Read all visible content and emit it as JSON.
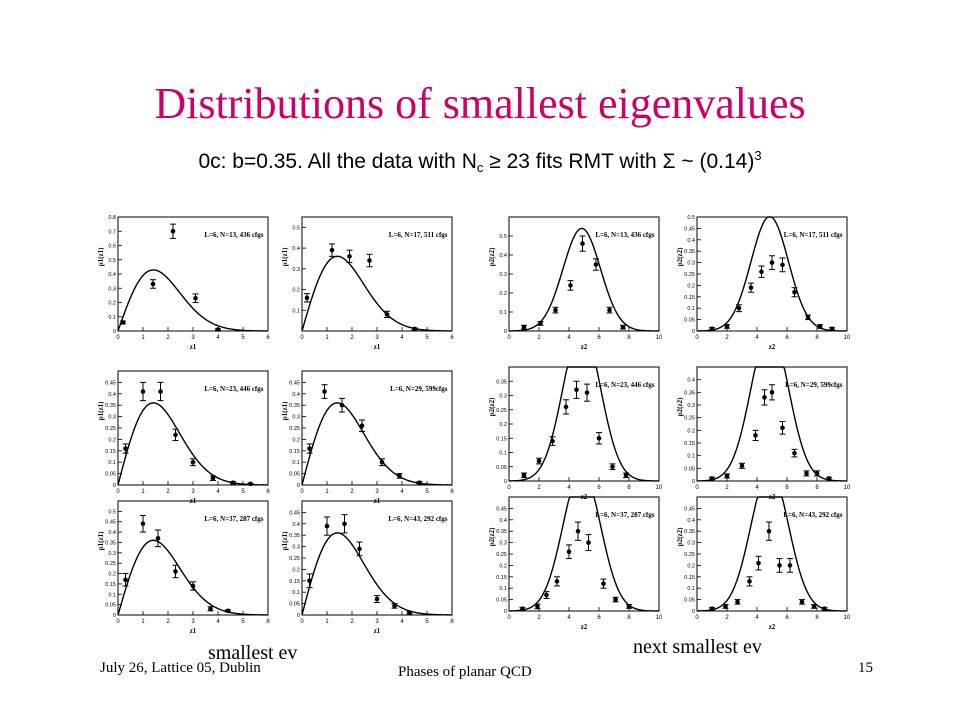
{
  "slide": {
    "title": "Distributions of smallest eigenvalues",
    "subtitle": {
      "prefix": "0c: b=0.35. All the data with N",
      "sub": "c",
      "mid": " ≥ 23 fits RMT with Σ ~ (0.14)",
      "sup": "3"
    },
    "caption_left": "smallest ev",
    "caption_right": "next smallest ev",
    "footer_left": "July 26, Lattice 05, Dublin",
    "footer_center": "Phases of planar QCD",
    "page_number": "15"
  },
  "chart_data": [
    {
      "type": "scatter",
      "title": "L=6, N=13, 436 cfgs",
      "xlabel": "z1",
      "ylabel": "p1(z1)",
      "xlim": [
        0,
        6
      ],
      "ylim": [
        0,
        0.8
      ],
      "xticks": [
        0,
        1,
        2,
        3,
        4,
        5,
        6
      ],
      "yticks": [
        0,
        0.1,
        0.2,
        0.3,
        0.4,
        0.5,
        0.6,
        0.7,
        0.8
      ],
      "points": [
        {
          "x": 0.2,
          "y": 0.06,
          "e": 0.01
        },
        {
          "x": 1.4,
          "y": 0.33,
          "e": 0.03
        },
        {
          "x": 2.2,
          "y": 0.7,
          "e": 0.05
        },
        {
          "x": 3.1,
          "y": 0.23,
          "e": 0.03
        },
        {
          "x": 4.0,
          "y": 0.01,
          "e": 0.005
        }
      ],
      "curve": "n1",
      "curve_scale": 1.0
    },
    {
      "type": "scatter",
      "title": "L=6, N=17, 511 cfgs",
      "xlabel": "z1",
      "ylabel": "p1(z1)",
      "xlim": [
        0,
        6
      ],
      "ylim": [
        0,
        0.55
      ],
      "xticks": [
        0,
        1,
        2,
        3,
        4,
        5,
        6
      ],
      "yticks": [
        0.1,
        0.2,
        0.3,
        0.4,
        0.5
      ],
      "points": [
        {
          "x": 0.2,
          "y": 0.16,
          "e": 0.02
        },
        {
          "x": 1.2,
          "y": 0.39,
          "e": 0.03
        },
        {
          "x": 1.9,
          "y": 0.36,
          "e": 0.03
        },
        {
          "x": 2.7,
          "y": 0.34,
          "e": 0.03
        },
        {
          "x": 3.4,
          "y": 0.08,
          "e": 0.015
        },
        {
          "x": 4.5,
          "y": 0.01,
          "e": 0.005
        }
      ],
      "curve": "n1",
      "curve_scale": 0.84
    },
    {
      "type": "scatter",
      "title": "L=6, N=23, 446 cfgs",
      "xlabel": "z1",
      "ylabel": "p1(z1)",
      "xlim": [
        0,
        6
      ],
      "ylim": [
        0,
        0.5
      ],
      "xticks": [
        0,
        1,
        2,
        3,
        4,
        5,
        6
      ],
      "yticks": [
        0,
        0.05,
        0.1,
        0.15,
        0.2,
        0.25,
        0.3,
        0.35,
        0.4,
        0.45
      ],
      "points": [
        {
          "x": 0.3,
          "y": 0.16,
          "e": 0.02
        },
        {
          "x": 1.0,
          "y": 0.41,
          "e": 0.04
        },
        {
          "x": 1.7,
          "y": 0.41,
          "e": 0.04
        },
        {
          "x": 2.3,
          "y": 0.22,
          "e": 0.025
        },
        {
          "x": 3.0,
          "y": 0.1,
          "e": 0.015
        },
        {
          "x": 3.8,
          "y": 0.03,
          "e": 0.01
        },
        {
          "x": 4.6,
          "y": 0.01,
          "e": 0.005
        },
        {
          "x": 5.3,
          "y": 0.005,
          "e": 0.003
        }
      ],
      "curve": "n1",
      "curve_scale": 0.84
    },
    {
      "type": "scatter",
      "title": "L=6, N=29, 599cfgs",
      "xlabel": "z1",
      "ylabel": "p1(z1)",
      "xlim": [
        0,
        6
      ],
      "ylim": [
        0,
        0.5
      ],
      "xticks": [
        0,
        1,
        2,
        3,
        4,
        5,
        6
      ],
      "yticks": [
        0,
        0.05,
        0.1,
        0.15,
        0.2,
        0.25,
        0.3,
        0.35,
        0.4,
        0.45
      ],
      "points": [
        {
          "x": 0.3,
          "y": 0.16,
          "e": 0.02
        },
        {
          "x": 0.9,
          "y": 0.41,
          "e": 0.03
        },
        {
          "x": 1.6,
          "y": 0.35,
          "e": 0.03
        },
        {
          "x": 2.4,
          "y": 0.26,
          "e": 0.025
        },
        {
          "x": 3.2,
          "y": 0.1,
          "e": 0.015
        },
        {
          "x": 3.9,
          "y": 0.04,
          "e": 0.01
        },
        {
          "x": 4.7,
          "y": 0.01,
          "e": 0.005
        }
      ],
      "curve": "n1",
      "curve_scale": 0.84
    },
    {
      "type": "scatter",
      "title": "L=6, N=37, 287 cfgs",
      "xlabel": "z1",
      "ylabel": "p1(z1)",
      "xlim": [
        0,
        6
      ],
      "ylim": [
        0,
        0.55
      ],
      "xticks": [
        0,
        1,
        2,
        3,
        4,
        5,
        6
      ],
      "yticks": [
        0,
        0.05,
        0.1,
        0.15,
        0.2,
        0.25,
        0.3,
        0.35,
        0.4,
        0.45,
        0.5
      ],
      "points": [
        {
          "x": 0.3,
          "y": 0.17,
          "e": 0.03
        },
        {
          "x": 1.0,
          "y": 0.44,
          "e": 0.04
        },
        {
          "x": 1.6,
          "y": 0.37,
          "e": 0.04
        },
        {
          "x": 2.3,
          "y": 0.21,
          "e": 0.03
        },
        {
          "x": 3.0,
          "y": 0.14,
          "e": 0.02
        },
        {
          "x": 3.7,
          "y": 0.03,
          "e": 0.01
        },
        {
          "x": 4.4,
          "y": 0.02,
          "e": 0.005
        }
      ],
      "curve": "n1",
      "curve_scale": 0.84
    },
    {
      "type": "scatter",
      "title": "L=6, N=43, 292 cfgs",
      "xlabel": "z1",
      "ylabel": "p1(z1)",
      "xlim": [
        0,
        6
      ],
      "ylim": [
        0,
        0.5
      ],
      "xticks": [
        0,
        1,
        2,
        3,
        4,
        5,
        6
      ],
      "yticks": [
        0,
        0.05,
        0.1,
        0.15,
        0.2,
        0.25,
        0.3,
        0.35,
        0.4,
        0.45
      ],
      "points": [
        {
          "x": 0.3,
          "y": 0.15,
          "e": 0.03
        },
        {
          "x": 1.0,
          "y": 0.39,
          "e": 0.04
        },
        {
          "x": 1.7,
          "y": 0.4,
          "e": 0.04
        },
        {
          "x": 2.3,
          "y": 0.29,
          "e": 0.03
        },
        {
          "x": 3.0,
          "y": 0.07,
          "e": 0.015
        },
        {
          "x": 3.7,
          "y": 0.04,
          "e": 0.01
        },
        {
          "x": 4.3,
          "y": 0.01,
          "e": 0.005
        }
      ],
      "curve": "n1",
      "curve_scale": 0.84
    },
    {
      "type": "scatter",
      "title": "L=6, N=13, 436 cfgs",
      "xlabel": "z2",
      "ylabel": "p2(z2)",
      "xlim": [
        0,
        10
      ],
      "ylim": [
        0,
        0.6
      ],
      "xticks": [
        0,
        2,
        4,
        6,
        8,
        10
      ],
      "yticks": [
        0,
        0.1,
        0.2,
        0.3,
        0.4,
        0.5
      ],
      "points": [
        {
          "x": 1.0,
          "y": 0.02,
          "e": 0.01
        },
        {
          "x": 2.1,
          "y": 0.04,
          "e": 0.01
        },
        {
          "x": 3.1,
          "y": 0.11,
          "e": 0.015
        },
        {
          "x": 4.1,
          "y": 0.24,
          "e": 0.025
        },
        {
          "x": 4.9,
          "y": 0.46,
          "e": 0.04
        },
        {
          "x": 5.8,
          "y": 0.35,
          "e": 0.03
        },
        {
          "x": 6.7,
          "y": 0.11,
          "e": 0.015
        },
        {
          "x": 7.6,
          "y": 0.02,
          "e": 0.01
        }
      ],
      "curve": "n2",
      "curve_scale": 1.0
    },
    {
      "type": "scatter",
      "title": "L=6, N=17, 511 cfgs",
      "xlabel": "z2",
      "ylabel": "p2(z2)",
      "xlim": [
        0,
        10
      ],
      "ylim": [
        0,
        0.5
      ],
      "xticks": [
        0,
        2,
        4,
        6,
        8,
        10
      ],
      "yticks": [
        0,
        0.05,
        0.1,
        0.15,
        0.2,
        0.25,
        0.3,
        0.35,
        0.4,
        0.45,
        0.5
      ],
      "points": [
        {
          "x": 1.0,
          "y": 0.01,
          "e": 0.005
        },
        {
          "x": 2.0,
          "y": 0.02,
          "e": 0.008
        },
        {
          "x": 2.8,
          "y": 0.1,
          "e": 0.015
        },
        {
          "x": 3.6,
          "y": 0.19,
          "e": 0.02
        },
        {
          "x": 4.3,
          "y": 0.26,
          "e": 0.025
        },
        {
          "x": 5.0,
          "y": 0.3,
          "e": 0.03
        },
        {
          "x": 5.7,
          "y": 0.29,
          "e": 0.03
        },
        {
          "x": 6.5,
          "y": 0.17,
          "e": 0.02
        },
        {
          "x": 7.4,
          "y": 0.06,
          "e": 0.01
        },
        {
          "x": 8.2,
          "y": 0.02,
          "e": 0.008
        },
        {
          "x": 9.0,
          "y": 0.01,
          "e": 0.005
        }
      ],
      "curve": "n2",
      "curve_scale": 0.93
    },
    {
      "type": "scatter",
      "title": "L=6, N=23, 446 cfgs",
      "xlabel": "z2",
      "ylabel": "p2(z2)",
      "xlim": [
        0,
        10
      ],
      "ylim": [
        0,
        0.4
      ],
      "xticks": [
        0,
        2,
        4,
        6,
        8,
        10
      ],
      "yticks": [
        0,
        0.05,
        0.1,
        0.15,
        0.2,
        0.25,
        0.3,
        0.35
      ],
      "points": [
        {
          "x": 1.0,
          "y": 0.02,
          "e": 0.008
        },
        {
          "x": 2.0,
          "y": 0.07,
          "e": 0.01
        },
        {
          "x": 2.9,
          "y": 0.14,
          "e": 0.015
        },
        {
          "x": 3.8,
          "y": 0.26,
          "e": 0.025
        },
        {
          "x": 4.5,
          "y": 0.32,
          "e": 0.03
        },
        {
          "x": 5.2,
          "y": 0.31,
          "e": 0.03
        },
        {
          "x": 6.0,
          "y": 0.15,
          "e": 0.02
        },
        {
          "x": 6.9,
          "y": 0.05,
          "e": 0.01
        },
        {
          "x": 7.8,
          "y": 0.02,
          "e": 0.008
        }
      ],
      "curve": "n2",
      "curve_scale": 1.0
    },
    {
      "type": "scatter",
      "title": "L=6, N=29, 599cfgs",
      "xlabel": "z2",
      "ylabel": "p2(z2)",
      "xlim": [
        0,
        10
      ],
      "ylim": [
        0,
        0.45
      ],
      "xticks": [
        0,
        2,
        4,
        6,
        8,
        10
      ],
      "yticks": [
        0,
        0.05,
        0.1,
        0.15,
        0.2,
        0.25,
        0.3,
        0.35,
        0.4
      ],
      "points": [
        {
          "x": 1.0,
          "y": 0.01,
          "e": 0.005
        },
        {
          "x": 2.0,
          "y": 0.02,
          "e": 0.008
        },
        {
          "x": 3.0,
          "y": 0.06,
          "e": 0.01
        },
        {
          "x": 3.9,
          "y": 0.18,
          "e": 0.02
        },
        {
          "x": 4.5,
          "y": 0.33,
          "e": 0.03
        },
        {
          "x": 5.0,
          "y": 0.35,
          "e": 0.03
        },
        {
          "x": 5.7,
          "y": 0.21,
          "e": 0.025
        },
        {
          "x": 6.5,
          "y": 0.11,
          "e": 0.015
        },
        {
          "x": 7.3,
          "y": 0.03,
          "e": 0.01
        },
        {
          "x": 8.0,
          "y": 0.03,
          "e": 0.01
        },
        {
          "x": 8.8,
          "y": 0.01,
          "e": 0.005
        }
      ],
      "curve": "n2",
      "curve_scale": 1.12
    },
    {
      "type": "scatter",
      "title": "L=6, N=37, 287 cfgs",
      "xlabel": "z2",
      "ylabel": "p2(z2)",
      "xlim": [
        0,
        10
      ],
      "ylim": [
        0,
        0.5
      ],
      "xticks": [
        0,
        2,
        4,
        6,
        8,
        10
      ],
      "yticks": [
        0,
        0.05,
        0.1,
        0.15,
        0.2,
        0.25,
        0.3,
        0.35,
        0.4,
        0.45
      ],
      "points": [
        {
          "x": 0.9,
          "y": 0.01,
          "e": 0.005
        },
        {
          "x": 1.9,
          "y": 0.02,
          "e": 0.01
        },
        {
          "x": 2.5,
          "y": 0.07,
          "e": 0.015
        },
        {
          "x": 3.2,
          "y": 0.13,
          "e": 0.02
        },
        {
          "x": 4.0,
          "y": 0.26,
          "e": 0.03
        },
        {
          "x": 4.6,
          "y": 0.35,
          "e": 0.04
        },
        {
          "x": 5.3,
          "y": 0.3,
          "e": 0.035
        },
        {
          "x": 6.3,
          "y": 0.12,
          "e": 0.02
        },
        {
          "x": 7.1,
          "y": 0.05,
          "e": 0.01
        },
        {
          "x": 8.0,
          "y": 0.02,
          "e": 0.008
        }
      ],
      "curve": "n2",
      "curve_scale": 1.15
    },
    {
      "type": "scatter",
      "title": "L=6, N=43, 292 cfgs",
      "xlabel": "z2",
      "ylabel": "p2(z2)",
      "xlim": [
        0,
        10
      ],
      "ylim": [
        0,
        0.5
      ],
      "xticks": [
        0,
        2,
        4,
        6,
        8,
        10
      ],
      "yticks": [
        0,
        0.05,
        0.1,
        0.15,
        0.2,
        0.25,
        0.3,
        0.35,
        0.4,
        0.45
      ],
      "points": [
        {
          "x": 1.0,
          "y": 0.01,
          "e": 0.005
        },
        {
          "x": 1.9,
          "y": 0.02,
          "e": 0.008
        },
        {
          "x": 2.7,
          "y": 0.04,
          "e": 0.01
        },
        {
          "x": 3.5,
          "y": 0.13,
          "e": 0.02
        },
        {
          "x": 4.1,
          "y": 0.21,
          "e": 0.03
        },
        {
          "x": 4.8,
          "y": 0.35,
          "e": 0.04
        },
        {
          "x": 5.5,
          "y": 0.2,
          "e": 0.03
        },
        {
          "x": 6.2,
          "y": 0.2,
          "e": 0.03
        },
        {
          "x": 7.0,
          "y": 0.04,
          "e": 0.01
        },
        {
          "x": 7.8,
          "y": 0.02,
          "e": 0.008
        },
        {
          "x": 8.5,
          "y": 0.01,
          "e": 0.005
        }
      ],
      "curve": "n2",
      "curve_scale": 1.15
    }
  ]
}
